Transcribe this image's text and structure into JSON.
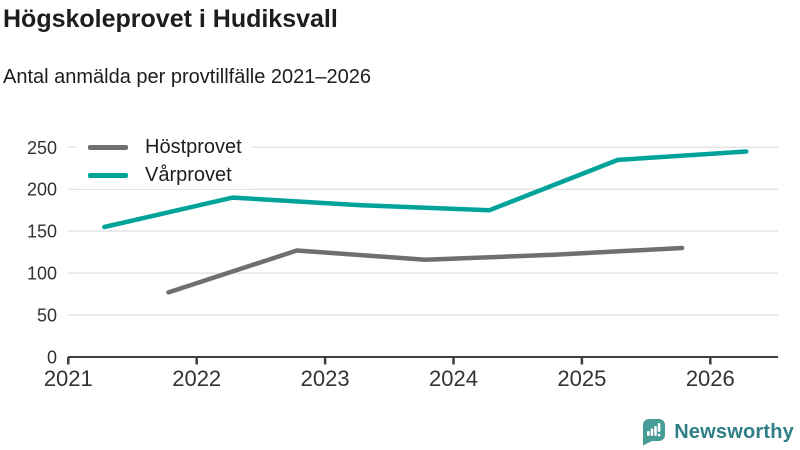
{
  "header": {
    "title": "Högskoleprovet i Hudiksvall",
    "subtitle": "Antal anmälda per provtillfälle 2021–2026"
  },
  "chart_data": {
    "type": "line",
    "title": "Högskoleprovet i Hudiksvall",
    "subtitle": "Antal anmälda per provtillfälle 2021–2026",
    "x_axis": {
      "min": 2021,
      "max": 2026.55,
      "ticks": [
        2021,
        2022,
        2023,
        2024,
        2025,
        2026
      ],
      "grid": false
    },
    "y_axis": {
      "min": 0,
      "max": 250,
      "ticks": [
        0,
        50,
        100,
        150,
        200,
        250
      ],
      "grid": true
    },
    "legend_position": "top-left",
    "series": [
      {
        "name": "Höstprovet",
        "color": "#6e6e73",
        "points": [
          [
            2021.78,
            77
          ],
          [
            2022.78,
            127
          ],
          [
            2023.78,
            116
          ],
          [
            2024.78,
            122
          ],
          [
            2025.78,
            130
          ]
        ]
      },
      {
        "name": "Vårprovet",
        "color": "#00a39a",
        "points": [
          [
            2021.28,
            155
          ],
          [
            2022.28,
            190
          ],
          [
            2023.28,
            181
          ],
          [
            2024.28,
            175
          ],
          [
            2025.28,
            235
          ],
          [
            2026.28,
            245
          ]
        ]
      }
    ]
  },
  "colors": {
    "grid": "#e4e4e4",
    "axis": "#3f3f3f",
    "tick_label": "#333333",
    "text": "#1d1d1b"
  },
  "footer": {
    "brand": "Newsworthy",
    "brand_color": "#2e7f86",
    "icon_color": "#479c96",
    "icon": "bar-chart-speech-bubble"
  }
}
